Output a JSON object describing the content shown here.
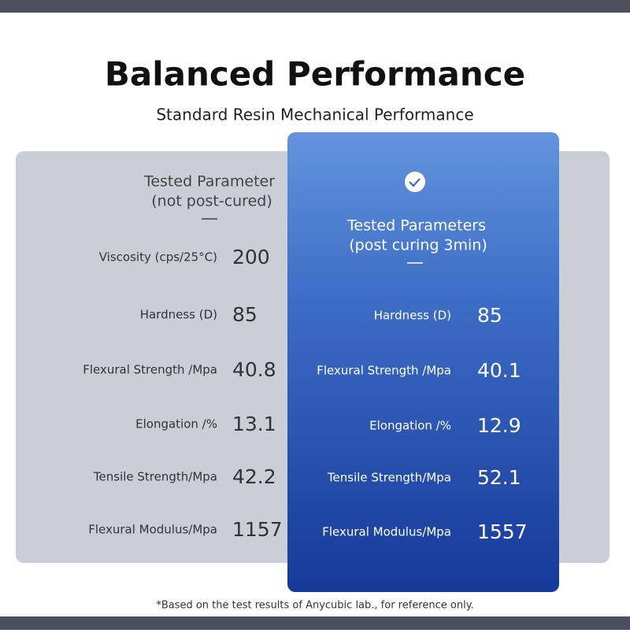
{
  "header": {
    "title": "Balanced Performance",
    "subtitle": "Standard Resin Mechanical Performance"
  },
  "left": {
    "heading": [
      "Tested Parameter",
      "(not post-cured)"
    ],
    "rows": [
      {
        "label": "Viscosity (cps/25°C)",
        "value": 200
      },
      {
        "label": "Hardness (D)",
        "value": 85
      },
      {
        "label": "Flexural Strength /Mpa",
        "value": 40.8
      },
      {
        "label": "Elongation /%",
        "value": 13.1
      },
      {
        "label": "Tensile Strength/Mpa",
        "value": 42.2
      },
      {
        "label": "Flexural Modulus/Mpa",
        "value": 1157
      }
    ]
  },
  "right": {
    "heading": [
      "Tested Parameters",
      "(post curing 3min)"
    ],
    "rows": [
      {
        "label": "Hardness (D)",
        "value": 85
      },
      {
        "label": "Flexural Strength /Mpa",
        "value": 40.1
      },
      {
        "label": "Elongation /%",
        "value": 12.9
      },
      {
        "label": "Tensile Strength/Mpa",
        "value": 52.1
      },
      {
        "label": "Flexural Modulus/Mpa",
        "value": 1557
      }
    ]
  },
  "footnote": "*Based on the test results of Anycubic lab., for reference only."
}
